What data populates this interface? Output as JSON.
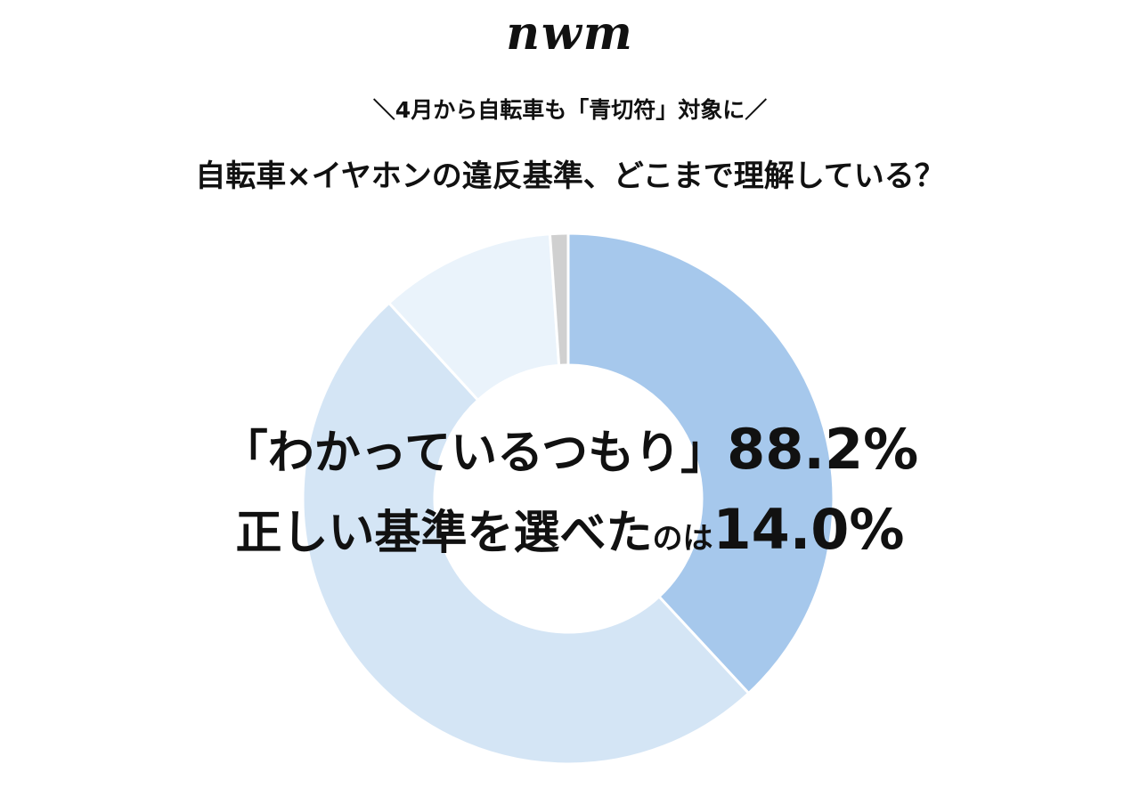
{
  "logo": "nwm",
  "subtitle": "＼4月から自転車も「青切符」対象に／",
  "title": "自転車×イヤホンの違反基準、どこまで理解している？",
  "headline": {
    "line1_text": "「わかっているつもり」",
    "line1_value": "88.2%",
    "line2_text": "正しい基準を選べた",
    "line2_small": "のは",
    "line2_value": "14.0%"
  },
  "chart_data": {
    "type": "pie",
    "donut": true,
    "start": "top",
    "direction": "clockwise",
    "values": [
      38.1,
      50.1,
      10.7,
      1.1
    ],
    "colors": [
      "#a6c8ec",
      "#d4e5f5",
      "#eaf3fb",
      "#d0d0d0"
    ]
  }
}
